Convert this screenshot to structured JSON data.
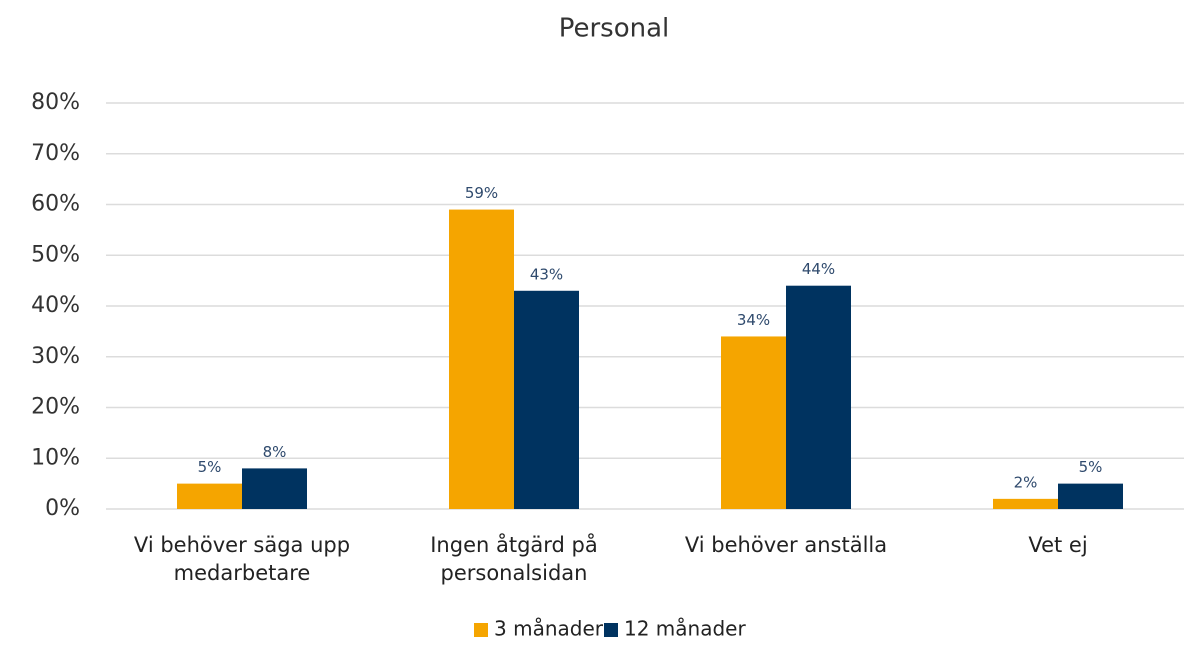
{
  "chart_data": {
    "type": "bar",
    "title": "Personal",
    "categories": [
      "Vi behöver säga upp medarbetare",
      "Ingen åtgärd på personalsidan",
      "Vi behöver anställa",
      "Vet ej"
    ],
    "series": [
      {
        "name": "3 månader",
        "color": "#f5a500",
        "values": [
          5,
          59,
          34,
          2
        ],
        "value_labels": [
          "5%",
          "59%",
          "34%",
          "2%"
        ]
      },
      {
        "name": "12 månader",
        "color": "#003360",
        "values": [
          8,
          43,
          44,
          5
        ],
        "value_labels": [
          "8%",
          "43%",
          "44%",
          "5%"
        ]
      }
    ],
    "ylim": [
      0,
      80
    ],
    "yticks": [
      {
        "value": 0,
        "label": "0%"
      },
      {
        "value": 10,
        "label": "10%"
      },
      {
        "value": 20,
        "label": "20%"
      },
      {
        "value": 30,
        "label": "30%"
      },
      {
        "value": 40,
        "label": "40%"
      },
      {
        "value": 50,
        "label": "50%"
      },
      {
        "value": 60,
        "label": "60%"
      },
      {
        "value": 70,
        "label": "70%"
      },
      {
        "value": 80,
        "label": "80%"
      }
    ],
    "grid": true,
    "legend": "bottom"
  }
}
